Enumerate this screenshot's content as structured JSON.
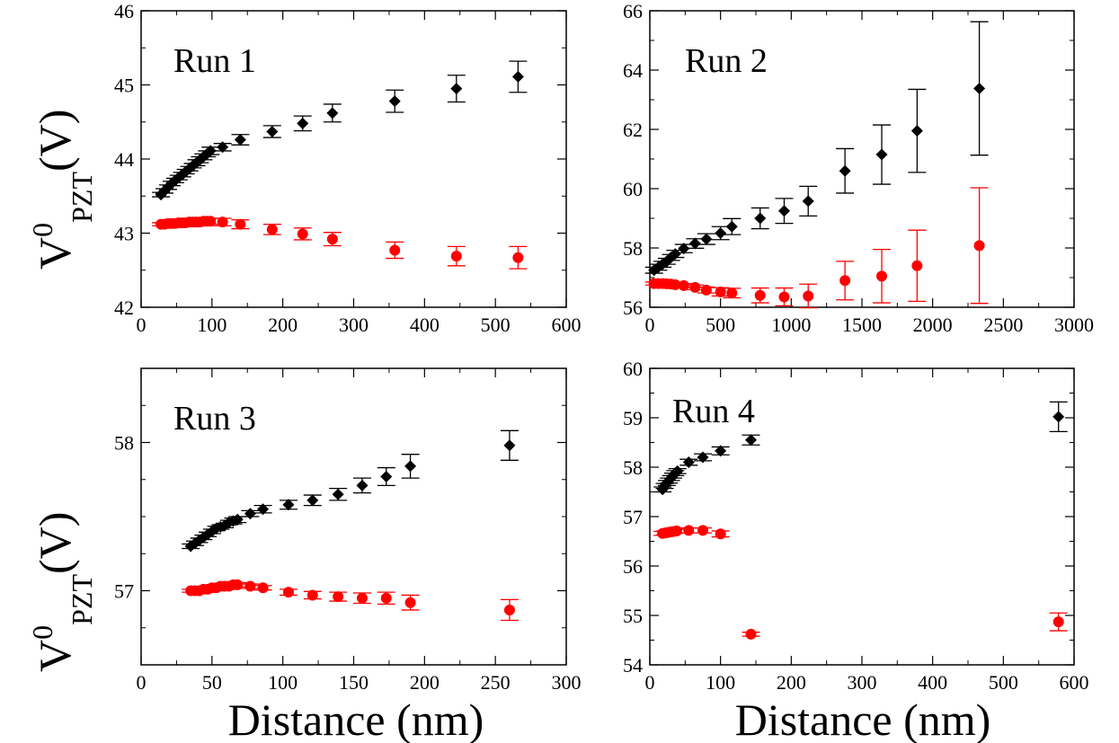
{
  "chart_data": [
    {
      "type": "scatter",
      "title": "Run 1",
      "xlim": [
        0,
        600
      ],
      "ylim": [
        42,
        46
      ],
      "xticks": [
        0,
        100,
        200,
        300,
        400,
        500,
        600
      ],
      "yticks": [
        42,
        43,
        44,
        45,
        46
      ],
      "series": [
        {
          "color": "#000000",
          "marker": "diamond",
          "x": [
            28,
            33,
            38,
            43,
            48,
            53,
            58,
            63,
            68,
            73,
            78,
            83,
            88,
            93,
            98,
            115,
            140,
            185,
            228,
            270,
            358,
            445,
            532
          ],
          "y": [
            43.52,
            43.57,
            43.62,
            43.67,
            43.71,
            43.75,
            43.79,
            43.83,
            43.87,
            43.91,
            43.95,
            43.99,
            44.03,
            44.07,
            44.11,
            44.16,
            44.26,
            44.37,
            44.48,
            44.62,
            44.78,
            44.95,
            45.11
          ],
          "err": [
            0.03,
            0.03,
            0.03,
            0.03,
            0.03,
            0.03,
            0.03,
            0.03,
            0.03,
            0.03,
            0.04,
            0.04,
            0.04,
            0.04,
            0.05,
            0.05,
            0.07,
            0.08,
            0.1,
            0.12,
            0.15,
            0.18,
            0.21
          ]
        },
        {
          "color": "#ff0000",
          "marker": "circle",
          "x": [
            28,
            33,
            38,
            43,
            48,
            53,
            58,
            63,
            68,
            73,
            78,
            83,
            88,
            93,
            98,
            115,
            140,
            185,
            228,
            270,
            358,
            445,
            532
          ],
          "y": [
            43.12,
            43.12,
            43.13,
            43.13,
            43.13,
            43.14,
            43.14,
            43.14,
            43.15,
            43.15,
            43.15,
            43.15,
            43.16,
            43.16,
            43.16,
            43.15,
            43.12,
            43.05,
            42.99,
            42.92,
            42.77,
            42.69,
            42.67
          ],
          "err": [
            0.02,
            0.02,
            0.02,
            0.02,
            0.02,
            0.02,
            0.02,
            0.02,
            0.02,
            0.02,
            0.03,
            0.03,
            0.03,
            0.03,
            0.04,
            0.05,
            0.06,
            0.07,
            0.08,
            0.09,
            0.11,
            0.13,
            0.15
          ]
        }
      ]
    },
    {
      "type": "scatter",
      "title": "Run 2",
      "xlim": [
        0,
        3000
      ],
      "ylim": [
        56,
        66
      ],
      "xticks": [
        0,
        500,
        1000,
        1500,
        2000,
        2500,
        3000
      ],
      "yticks": [
        56,
        58,
        60,
        62,
        64,
        66
      ],
      "series": [
        {
          "color": "#000000",
          "marker": "diamond",
          "x": [
            30,
            60,
            90,
            120,
            150,
            180,
            240,
            320,
            400,
            500,
            580,
            780,
            950,
            1120,
            1380,
            1640,
            1890,
            2330
          ],
          "y": [
            57.25,
            57.35,
            57.45,
            57.55,
            57.68,
            57.8,
            57.98,
            58.15,
            58.3,
            58.5,
            58.72,
            59.0,
            59.25,
            59.58,
            60.6,
            61.15,
            61.95,
            63.38
          ],
          "err": [
            0.1,
            0.1,
            0.1,
            0.1,
            0.1,
            0.12,
            0.14,
            0.16,
            0.18,
            0.22,
            0.27,
            0.35,
            0.42,
            0.5,
            0.75,
            1.0,
            1.4,
            2.25
          ]
        },
        {
          "color": "#ff0000",
          "marker": "circle",
          "x": [
            30,
            60,
            90,
            120,
            150,
            180,
            240,
            320,
            400,
            500,
            580,
            780,
            950,
            1120,
            1380,
            1640,
            1890,
            2330
          ],
          "y": [
            56.8,
            56.8,
            56.8,
            56.79,
            56.78,
            56.76,
            56.73,
            56.67,
            56.58,
            56.52,
            56.48,
            56.4,
            56.35,
            56.38,
            56.9,
            57.05,
            57.4,
            58.08
          ],
          "err": [
            0.05,
            0.05,
            0.05,
            0.05,
            0.06,
            0.06,
            0.07,
            0.08,
            0.1,
            0.14,
            0.16,
            0.25,
            0.3,
            0.4,
            0.65,
            0.9,
            1.2,
            1.95
          ]
        }
      ]
    },
    {
      "type": "scatter",
      "title": "Run 3",
      "xlim": [
        0,
        300
      ],
      "ylim": [
        56.5,
        58.5
      ],
      "xticks": [
        0,
        50,
        100,
        150,
        200,
        250,
        300
      ],
      "yticks": [
        57,
        58
      ],
      "series": [
        {
          "color": "#000000",
          "marker": "diamond",
          "x": [
            35,
            38,
            41,
            44,
            47,
            50,
            53,
            56,
            59,
            62,
            65,
            68,
            77,
            86,
            104,
            121,
            139,
            156,
            173,
            190,
            260
          ],
          "y": [
            57.3,
            57.32,
            57.34,
            57.36,
            57.38,
            57.4,
            57.42,
            57.43,
            57.44,
            57.46,
            57.47,
            57.48,
            57.52,
            57.55,
            57.58,
            57.61,
            57.65,
            57.71,
            57.77,
            57.84,
            57.98
          ],
          "err": [
            0.015,
            0.015,
            0.015,
            0.015,
            0.015,
            0.015,
            0.015,
            0.015,
            0.015,
            0.015,
            0.02,
            0.02,
            0.02,
            0.025,
            0.03,
            0.035,
            0.04,
            0.05,
            0.06,
            0.08,
            0.1
          ]
        },
        {
          "color": "#ff0000",
          "marker": "circle",
          "x": [
            35,
            38,
            41,
            44,
            47,
            50,
            53,
            56,
            59,
            62,
            65,
            68,
            77,
            86,
            104,
            121,
            139,
            156,
            173,
            190,
            260
          ],
          "y": [
            57.0,
            57.0,
            57.0,
            57.01,
            57.01,
            57.02,
            57.02,
            57.03,
            57.03,
            57.03,
            57.04,
            57.04,
            57.03,
            57.02,
            56.99,
            56.97,
            56.96,
            56.95,
            56.95,
            56.92,
            56.87
          ],
          "err": [
            0.01,
            0.01,
            0.01,
            0.01,
            0.01,
            0.01,
            0.01,
            0.01,
            0.01,
            0.01,
            0.015,
            0.015,
            0.015,
            0.015,
            0.02,
            0.025,
            0.03,
            0.035,
            0.04,
            0.05,
            0.07
          ]
        }
      ]
    },
    {
      "type": "scatter",
      "title": "Run 4",
      "xlim": [
        0,
        600
      ],
      "ylim": [
        54,
        60
      ],
      "xticks": [
        0,
        100,
        200,
        300,
        400,
        500,
        600
      ],
      "yticks": [
        54,
        55,
        56,
        57,
        58,
        59,
        60
      ],
      "series": [
        {
          "color": "#000000",
          "marker": "diamond",
          "x": [
            18,
            21,
            24,
            27,
            30,
            33,
            36,
            39,
            55,
            75,
            100,
            143,
            578
          ],
          "y": [
            57.55,
            57.62,
            57.68,
            57.73,
            57.78,
            57.83,
            57.88,
            57.92,
            58.1,
            58.2,
            58.33,
            58.55,
            59.02
          ],
          "err": [
            0.05,
            0.05,
            0.05,
            0.05,
            0.05,
            0.05,
            0.05,
            0.05,
            0.06,
            0.07,
            0.08,
            0.1,
            0.3
          ]
        },
        {
          "color": "#ff0000",
          "marker": "circle",
          "x": [
            18,
            22,
            26,
            30,
            34,
            38,
            55,
            75,
            100,
            143,
            578
          ],
          "y": [
            56.66,
            56.67,
            56.68,
            56.69,
            56.7,
            56.71,
            56.72,
            56.72,
            56.65,
            54.62,
            54.87
          ],
          "err": [
            0.04,
            0.04,
            0.04,
            0.04,
            0.04,
            0.04,
            0.05,
            0.05,
            0.06,
            0.04,
            0.18
          ]
        }
      ]
    }
  ],
  "axis_titles": {
    "y_main": "V",
    "y_sup": "0",
    "y_sub": "PZT",
    "y_unit": "(V)",
    "x": "Distance (nm)"
  }
}
